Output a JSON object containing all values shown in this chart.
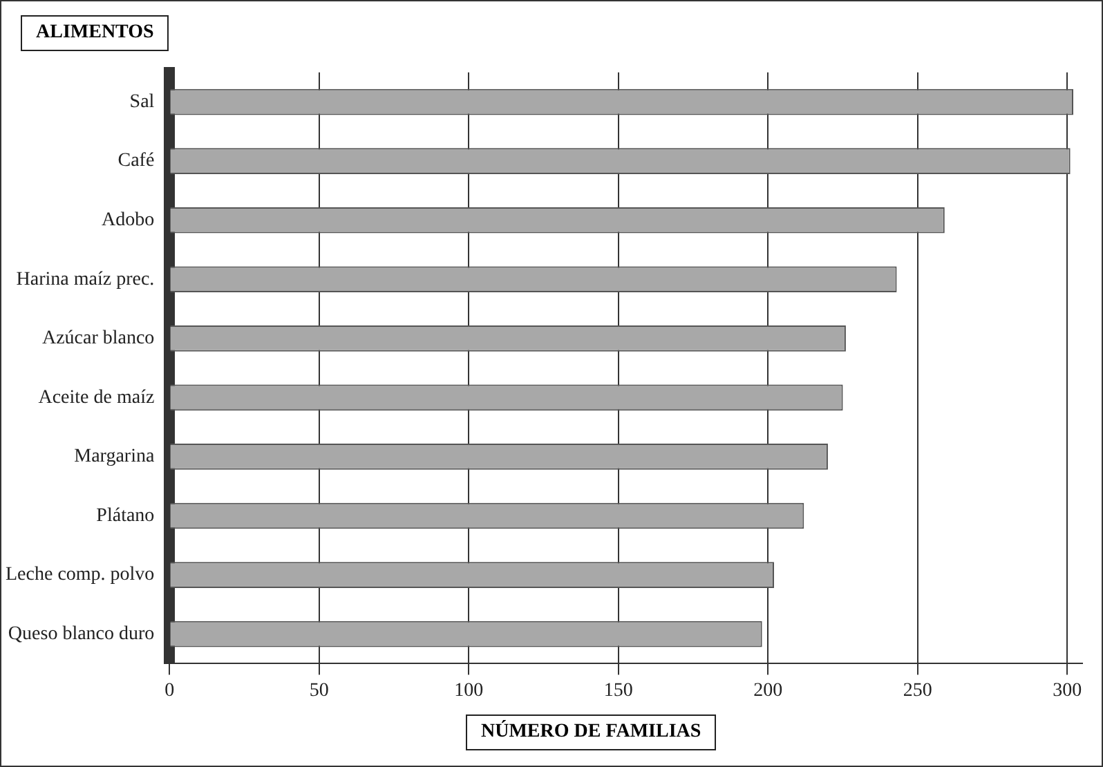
{
  "chart_data": {
    "type": "bar",
    "orientation": "horizontal",
    "ylabel": "ALIMENTOS",
    "xlabel": "NÚMERO DE FAMILIAS",
    "categories": [
      "Sal",
      "Café",
      "Adobo",
      "Harina maíz prec.",
      "Azúcar blanco",
      "Aceite de maíz",
      "Margarina",
      "Plátano",
      "Leche comp. polvo",
      "Queso blanco duro"
    ],
    "values": [
      302,
      301,
      259,
      243,
      226,
      225,
      220,
      212,
      202,
      198
    ],
    "color": "#a8a8a8",
    "xlim": [
      0,
      305
    ],
    "xticks": [
      0,
      50,
      100,
      150,
      200,
      250,
      300
    ],
    "grid": "x",
    "legend": false
  }
}
